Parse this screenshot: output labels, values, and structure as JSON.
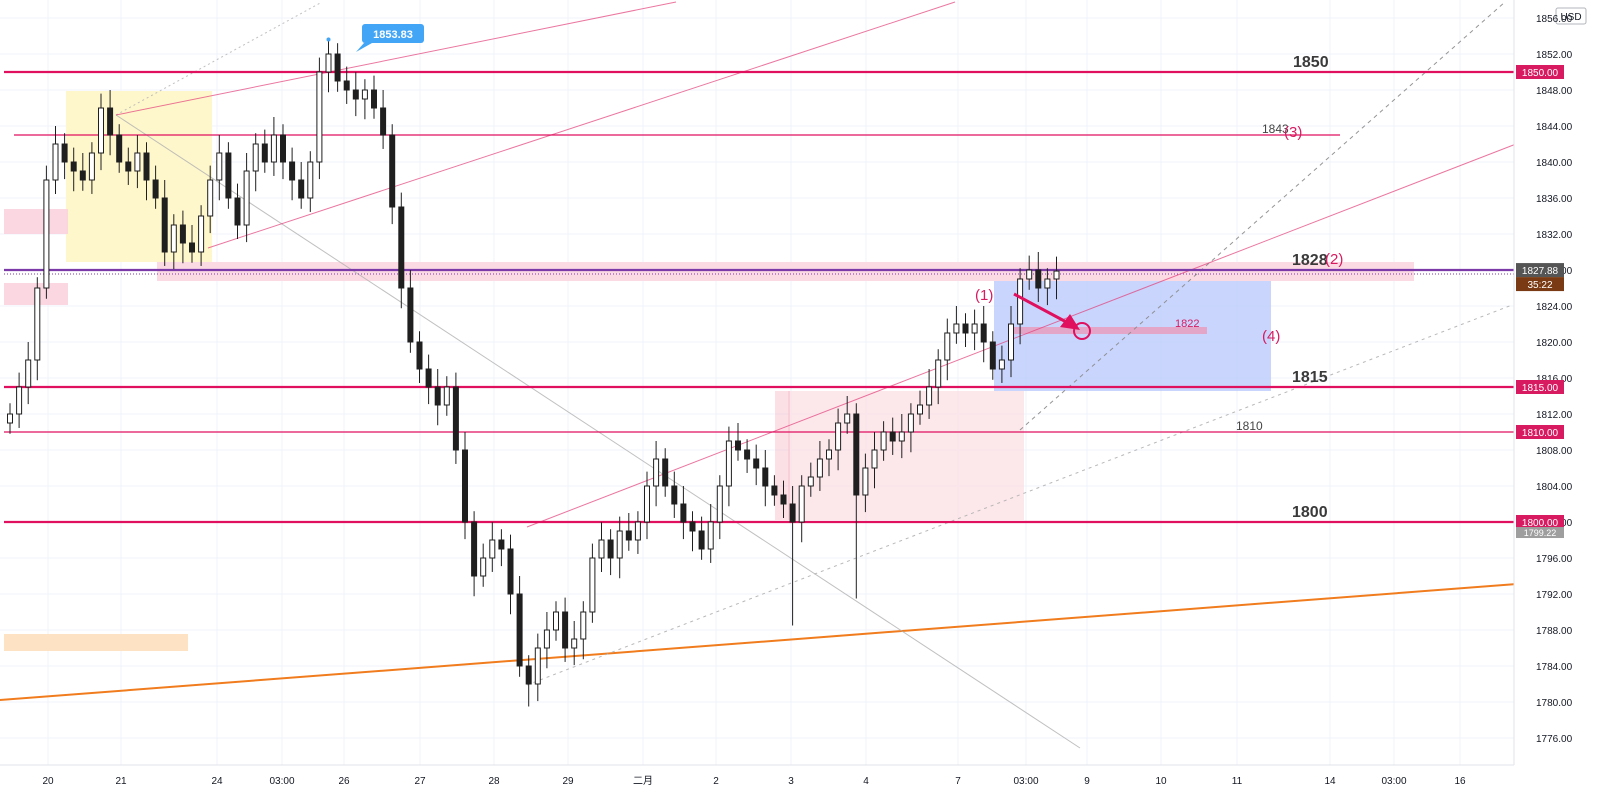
{
  "currency_label": "USD",
  "colors": {
    "level_line": "#e0105f",
    "level_tag": "#d81b60",
    "orange_trend": "#f07c1d",
    "candle": "#1f1f1f",
    "current_tag": "#555555",
    "timer_tag": "#7a3b14",
    "extra_tag": "#9e9e9e",
    "high_tag": "#42a5f5",
    "zone_yellow": "#fff7cc",
    "zone_pink": "#fbd3df",
    "zone_orange": "#fde3c4",
    "zone_blue": "#b7c7fb",
    "zone_rose": "#fbdde3"
  },
  "chart_data": {
    "type": "candlestick",
    "title": "",
    "xlabel": "",
    "ylabel": "",
    "ylim": [
      1773.0,
      1858.0
    ],
    "y_ticks": [
      "1856.00",
      "1852.00",
      "1848.00",
      "1844.00",
      "1840.00",
      "1836.00",
      "1832.00",
      "1828.00",
      "1824.00",
      "1820.00",
      "1816.00",
      "1812.00",
      "1808.00",
      "1804.00",
      "1800.00",
      "1796.00",
      "1792.00",
      "1788.00",
      "1784.00",
      "1780.00",
      "1776.00"
    ],
    "x_ticks": [
      "20",
      "21",
      "24",
      "03:00",
      "26",
      "27",
      "28",
      "29",
      "二月",
      "2",
      "3",
      "4",
      "7",
      "03:00",
      "9",
      "10",
      "11",
      "14",
      "03:00",
      "16"
    ],
    "price_series": [
      {
        "x": 0,
        "y": 1812.0
      },
      {
        "x": 1,
        "y": 1815.0
      },
      {
        "x": 2,
        "y": 1818.0
      },
      {
        "x": 3,
        "y": 1826.0
      },
      {
        "x": 4,
        "y": 1838.0
      },
      {
        "x": 5,
        "y": 1842.0
      },
      {
        "x": 6,
        "y": 1840.0
      },
      {
        "x": 7,
        "y": 1839.0
      },
      {
        "x": 8,
        "y": 1838.0
      },
      {
        "x": 9,
        "y": 1841.0
      },
      {
        "x": 10,
        "y": 1846.0
      },
      {
        "x": 11,
        "y": 1843.0
      },
      {
        "x": 12,
        "y": 1840.0
      },
      {
        "x": 13,
        "y": 1839.0
      },
      {
        "x": 14,
        "y": 1841.0
      },
      {
        "x": 15,
        "y": 1838.0
      },
      {
        "x": 16,
        "y": 1836.0
      },
      {
        "x": 17,
        "y": 1830.0
      },
      {
        "x": 18,
        "y": 1833.0
      },
      {
        "x": 19,
        "y": 1831.0
      },
      {
        "x": 20,
        "y": 1830.0
      },
      {
        "x": 21,
        "y": 1834.0
      },
      {
        "x": 22,
        "y": 1838.0
      },
      {
        "x": 23,
        "y": 1841.0
      },
      {
        "x": 24,
        "y": 1836.0
      },
      {
        "x": 25,
        "y": 1833.0
      },
      {
        "x": 26,
        "y": 1839.0
      },
      {
        "x": 27,
        "y": 1842.0
      },
      {
        "x": 28,
        "y": 1840.0
      },
      {
        "x": 29,
        "y": 1843.0
      },
      {
        "x": 30,
        "y": 1840.0
      },
      {
        "x": 31,
        "y": 1838.0
      },
      {
        "x": 32,
        "y": 1836.0
      },
      {
        "x": 33,
        "y": 1840.0
      },
      {
        "x": 34,
        "y": 1850.0
      },
      {
        "x": 35,
        "y": 1852.0
      },
      {
        "x": 36,
        "y": 1849.0
      },
      {
        "x": 37,
        "y": 1848.0
      },
      {
        "x": 38,
        "y": 1847.0
      },
      {
        "x": 39,
        "y": 1848.0
      },
      {
        "x": 40,
        "y": 1846.0
      },
      {
        "x": 41,
        "y": 1843.0
      },
      {
        "x": 42,
        "y": 1835.0
      },
      {
        "x": 43,
        "y": 1826.0
      },
      {
        "x": 44,
        "y": 1820.0
      },
      {
        "x": 45,
        "y": 1817.0
      },
      {
        "x": 46,
        "y": 1815.0
      },
      {
        "x": 47,
        "y": 1813.0
      },
      {
        "x": 48,
        "y": 1815.0
      },
      {
        "x": 49,
        "y": 1808.0
      },
      {
        "x": 50,
        "y": 1800.0
      },
      {
        "x": 51,
        "y": 1794.0
      },
      {
        "x": 52,
        "y": 1796.0
      },
      {
        "x": 53,
        "y": 1798.0
      },
      {
        "x": 54,
        "y": 1797.0
      },
      {
        "x": 55,
        "y": 1792.0
      },
      {
        "x": 56,
        "y": 1784.0
      },
      {
        "x": 57,
        "y": 1782.0
      },
      {
        "x": 58,
        "y": 1786.0
      },
      {
        "x": 59,
        "y": 1788.0
      },
      {
        "x": 60,
        "y": 1790.0
      },
      {
        "x": 61,
        "y": 1786.0
      },
      {
        "x": 62,
        "y": 1787.0
      },
      {
        "x": 63,
        "y": 1790.0
      },
      {
        "x": 64,
        "y": 1796.0
      },
      {
        "x": 65,
        "y": 1798.0
      },
      {
        "x": 66,
        "y": 1796.0
      },
      {
        "x": 67,
        "y": 1799.0
      },
      {
        "x": 68,
        "y": 1798.0
      },
      {
        "x": 69,
        "y": 1800.0
      },
      {
        "x": 70,
        "y": 1804.0
      },
      {
        "x": 71,
        "y": 1807.0
      },
      {
        "x": 72,
        "y": 1804.0
      },
      {
        "x": 73,
        "y": 1802.0
      },
      {
        "x": 74,
        "y": 1800.0
      },
      {
        "x": 75,
        "y": 1799.0
      },
      {
        "x": 76,
        "y": 1797.0
      },
      {
        "x": 77,
        "y": 1800.0
      },
      {
        "x": 78,
        "y": 1804.0
      },
      {
        "x": 79,
        "y": 1809.0
      },
      {
        "x": 80,
        "y": 1808.0
      },
      {
        "x": 81,
        "y": 1807.0
      },
      {
        "x": 82,
        "y": 1806.0
      },
      {
        "x": 83,
        "y": 1804.0
      },
      {
        "x": 84,
        "y": 1803.0
      },
      {
        "x": 85,
        "y": 1802.0
      },
      {
        "x": 86,
        "y": 1800.0
      },
      {
        "x": 87,
        "y": 1804.0
      },
      {
        "x": 88,
        "y": 1805.0
      },
      {
        "x": 89,
        "y": 1807.0
      },
      {
        "x": 90,
        "y": 1808.0
      },
      {
        "x": 91,
        "y": 1811.0
      },
      {
        "x": 92,
        "y": 1812.0
      },
      {
        "x": 93,
        "y": 1803.0
      },
      {
        "x": 94,
        "y": 1806.0
      },
      {
        "x": 95,
        "y": 1808.0
      },
      {
        "x": 96,
        "y": 1810.0
      },
      {
        "x": 97,
        "y": 1809.0
      },
      {
        "x": 98,
        "y": 1810.0
      },
      {
        "x": 99,
        "y": 1812.0
      },
      {
        "x": 100,
        "y": 1813.0
      },
      {
        "x": 101,
        "y": 1815.0
      },
      {
        "x": 102,
        "y": 1818.0
      },
      {
        "x": 103,
        "y": 1821.0
      },
      {
        "x": 104,
        "y": 1822.0
      },
      {
        "x": 105,
        "y": 1821.0
      },
      {
        "x": 106,
        "y": 1822.0
      },
      {
        "x": 107,
        "y": 1820.0
      },
      {
        "x": 108,
        "y": 1817.0
      },
      {
        "x": 109,
        "y": 1818.0
      },
      {
        "x": 110,
        "y": 1822.0
      },
      {
        "x": 111,
        "y": 1827.0
      },
      {
        "x": 112,
        "y": 1828.0
      },
      {
        "x": 113,
        "y": 1826.0
      },
      {
        "x": 114,
        "y": 1827.0
      },
      {
        "x": 115,
        "y": 1827.88
      }
    ],
    "price_high": 1853.83,
    "current_price": "1827.88",
    "countdown": "35:22",
    "extra_price_tag": "1799.22",
    "level_lines": [
      {
        "price": 1850.0,
        "label": "1850",
        "tag": "1850.00",
        "bold": true
      },
      {
        "price": 1843.0,
        "label": "1843",
        "tag": "",
        "bold": false
      },
      {
        "price": 1828.0,
        "label": "1828",
        "tag": "",
        "bold": true
      },
      {
        "price": 1815.0,
        "label": "1815",
        "tag": "1815.00",
        "bold": true
      },
      {
        "price": 1810.0,
        "label": "1810",
        "tag": "1810.00",
        "bold": false
      },
      {
        "price": 1800.0,
        "label": "1800",
        "tag": "1800.00",
        "bold": true
      }
    ],
    "mid_level": {
      "price": 1822.0,
      "label": "1822"
    },
    "orange_trendline": {
      "from": {
        "x": -4,
        "y": 1780.0
      },
      "to": {
        "x": 190,
        "y": 1795.0
      }
    },
    "annotations": [
      "(1)",
      "(2)",
      "(3)",
      "(4)"
    ],
    "grid": true
  }
}
